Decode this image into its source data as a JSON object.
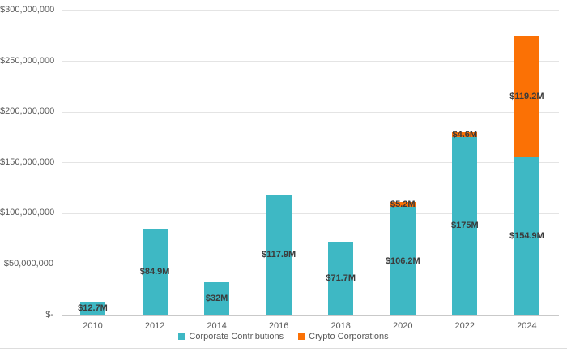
{
  "chart_data": {
    "type": "bar",
    "stacked": true,
    "title": "",
    "xlabel": "",
    "ylabel": "",
    "grid": true,
    "legend_position": "bottom-center",
    "categories": [
      "2010",
      "2012",
      "2014",
      "2016",
      "2018",
      "2020",
      "2022",
      "2024"
    ],
    "series": [
      {
        "name": "Corporate Contributions",
        "color": "#3EB8C4",
        "values": [
          12700000,
          84900000,
          32000000,
          117900000,
          71700000,
          106200000,
          175000000,
          154900000
        ],
        "labels": [
          "$12.7M",
          "$84.9M",
          "$32M",
          "$117.9M",
          "$71.7M",
          "$106.2M",
          "$175M",
          "$154.9M"
        ]
      },
      {
        "name": "Crypto Corporations",
        "color": "#FB7105",
        "values": [
          0,
          0,
          0,
          0,
          0,
          5200000,
          4600000,
          119200000
        ],
        "labels": [
          "",
          "",
          "",
          "",
          "",
          "$5.2M",
          "$4.6M",
          "$119.2M"
        ]
      }
    ],
    "ylim": [
      0,
      300000000
    ],
    "yticks": [
      {
        "value": 0,
        "label": "$-"
      },
      {
        "value": 50000000,
        "label": "$50,000,000"
      },
      {
        "value": 100000000,
        "label": "$100,000,000"
      },
      {
        "value": 150000000,
        "label": "$150,000,000"
      },
      {
        "value": 200000000,
        "label": "$200,000,000"
      },
      {
        "value": 250000000,
        "label": "$250,000,000"
      },
      {
        "value": 300000000,
        "label": "$300,000,000"
      }
    ],
    "colors": {
      "corporate": "#3EB8C4",
      "crypto": "#FB7105",
      "gridline": "#e4e4e4",
      "axis_line": "#c9c9c9",
      "axis_text": "#595959",
      "data_label_text": "#3b3b3b"
    }
  }
}
